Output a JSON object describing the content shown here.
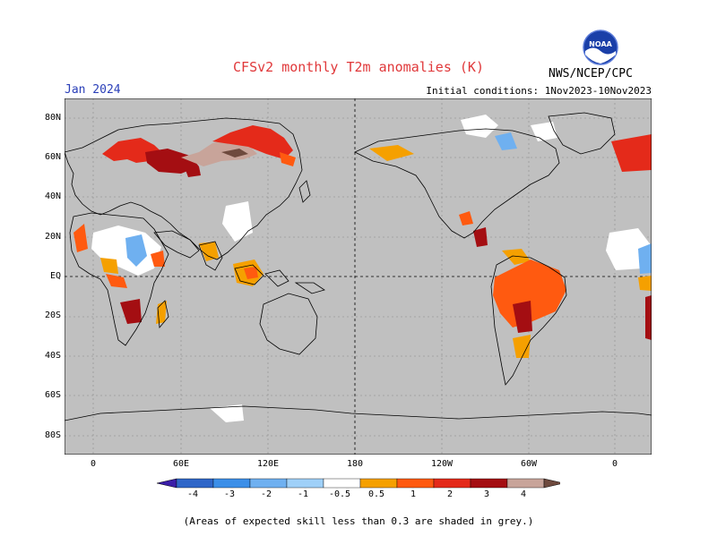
{
  "header": {
    "title": "CFSv2 monthly T2m anomalies (K)",
    "month": "Jan 2024",
    "initial_conditions": "Initial conditions: 1Nov2023-10Nov2023",
    "org": "NWS/NCEP/CPC",
    "logo_text": "NOAA"
  },
  "axes": {
    "lat_labels": [
      "80N",
      "60N",
      "40N",
      "20N",
      "EQ",
      "20S",
      "40S",
      "60S",
      "80S"
    ],
    "lon_labels": [
      "0",
      "60E",
      "120E",
      "180",
      "120W",
      "60W",
      "0"
    ]
  },
  "colorbar": {
    "labels": [
      "-4",
      "-3",
      "-2",
      "-1",
      "-0.5",
      "0.5",
      "1",
      "2",
      "3",
      "4"
    ],
    "colors": [
      "#3a1ea8",
      "#2f66c8",
      "#3c8fe8",
      "#6fb0f0",
      "#9fd0f8",
      "#ffffff",
      "#f5a000",
      "#ff5a10",
      "#e42a1a",
      "#a40e12",
      "#c8a49a",
      "#6e4a3e"
    ]
  },
  "footnote": "(Areas of expected skill less than 0.3 are shaded in grey.)"
}
